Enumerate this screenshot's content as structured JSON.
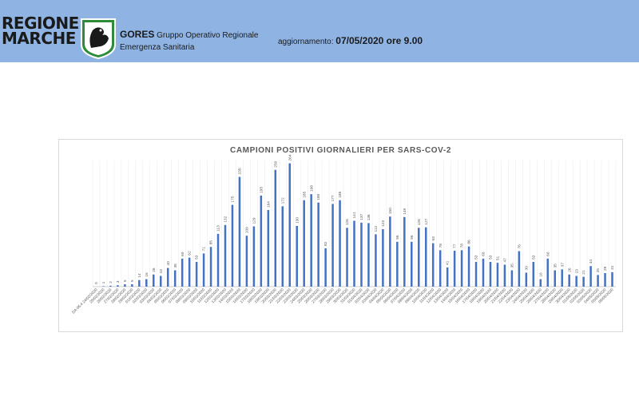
{
  "header": {
    "logo_line1": "REGIONE",
    "logo_line2": "MARCHE",
    "org_acronym": "GORES",
    "org_name_1": "Gruppo Operativo Regionale",
    "org_name_2": "Emergenza Sanitaria",
    "update_label": "aggiornamento:",
    "update_value": "07/05/2020 ore 9.00"
  },
  "colors": {
    "header_bg": "#8fb4e3",
    "bar": "#4472c4",
    "emblem_green": "#2e8b3a"
  },
  "chart_data": {
    "type": "bar",
    "title": "CAMPIONI POSITIVI GIORNALIERI PER SARS-COV-2",
    "xlabel": "",
    "ylabel": "",
    "ylim": [
      0,
      270
    ],
    "grid": "vertical",
    "categories": [
      "DA 06.4 24/02/2020",
      "25/02/2020",
      "26/02/2020",
      "27/02/2020",
      "28/02/2020",
      "29/02/2020",
      "01/03/2020",
      "02/03/2020",
      "03/03/2020",
      "04/03/2020",
      "05/03/2020",
      "06/03/2020",
      "07/03/2020",
      "08/03/2020",
      "09/03/2020",
      "10/03/2020",
      "11/03/2020",
      "12/03/2020",
      "13/03/2020",
      "14/03/2020",
      "15/03/2020",
      "16/03/2020",
      "17/03/2020",
      "18/03/2020",
      "19/03/2020",
      "20/03/2020",
      "21/03/2020",
      "22/03/2020",
      "23/03/2020",
      "24/03/2020",
      "25/03/2020",
      "26/03/2020",
      "27/03/2020",
      "28/03/2020",
      "29/03/2020",
      "30/03/2020",
      "31/03/2020",
      "01/04/2020",
      "02/04/2020",
      "03/04/2020",
      "04/04/2020",
      "05/04/2020",
      "06/04/2020",
      "07/04/2020",
      "08/04/2020",
      "09/04/2020",
      "10/04/2020",
      "11/04/2020",
      "12/04/2020",
      "13/04/2020",
      "14/04/2020",
      "15/04/2020",
      "16/04/2020",
      "17/04/2020",
      "18/04/2020",
      "19/04/2020",
      "20/04/2020",
      "21/04/2020",
      "22/04/2020",
      "23/04/2020",
      "24/04/2020",
      "25/04/2020",
      "26/04/2020",
      "27/04/2020",
      "28/04/2020",
      "29/04/2020",
      "30/04/2020",
      "01/05/2020",
      "02/05/2020",
      "03/05/2020",
      "04/05/2020",
      "05/05/2020",
      "06/05/2020"
    ],
    "values": [
      0,
      1,
      2,
      3,
      5,
      5,
      14,
      16,
      26,
      23,
      40,
      35,
      60,
      62,
      53,
      71,
      85,
      113,
      132,
      175,
      235,
      109,
      129,
      195,
      164,
      250,
      172,
      264,
      130,
      185,
      198,
      180,
      82,
      177,
      185,
      126,
      141,
      137,
      136,
      112,
      123,
      150,
      96,
      149,
      96,
      126,
      127,
      93,
      78,
      41,
      77,
      78,
      86,
      53,
      60,
      53,
      51,
      47,
      35,
      76,
      30,
      53,
      16,
      60,
      35,
      37,
      26,
      23,
      21,
      44,
      25,
      29,
      31
    ]
  }
}
